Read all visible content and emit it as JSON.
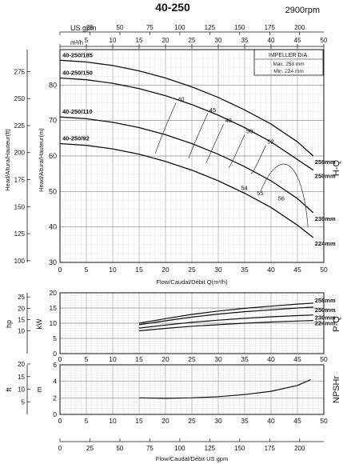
{
  "header": {
    "title": "40-250",
    "speed": "2900rpm"
  },
  "impeller_box": {
    "title": "IMPELLER DIA.",
    "max": "Max.  258  mm",
    "min": "Min.  224  mm"
  },
  "top_axes": {
    "gpm_label": "US gpm",
    "gpm_ticks": [
      "0",
      "25",
      "50",
      "75",
      "100",
      "125",
      "150",
      "175",
      "200"
    ],
    "m3h_label": "m³/h",
    "m3h_ticks": [
      "0",
      "5",
      "10",
      "15",
      "20",
      "25",
      "30",
      "35",
      "40",
      "45",
      "50"
    ]
  },
  "labels": {
    "head_m": "Head/Altura/Hauteur(m)",
    "head_ft": "Head/Altura/Hauteur(ft)",
    "hq": "H-Q",
    "pq": "P-Q",
    "npshr": "NPSHr",
    "flow_m3h": "Flow/Caudal/Débit Q(m³/h)",
    "flow_gpm": "Flow/Caudal/Débit  US gpm",
    "hp": "hp",
    "kw": "kW",
    "ft": "ft",
    "m": "m"
  },
  "chart_data": [
    {
      "type": "line",
      "name": "H-Q",
      "xlim": [
        0,
        50
      ],
      "ylim_m": [
        30,
        90
      ],
      "ylim_ft": [
        100,
        280
      ],
      "x_ticks": [
        0,
        5,
        10,
        15,
        20,
        25,
        30,
        35,
        40,
        45,
        50
      ],
      "y_ticks_m": [
        30,
        40,
        50,
        60,
        70,
        80
      ],
      "y_ticks_ft": [
        100,
        125,
        150,
        175,
        200,
        225,
        250,
        275
      ],
      "series": [
        {
          "name": "40-250/185",
          "end_label": "258mm",
          "x": [
            0,
            5,
            10,
            15,
            20,
            25,
            30,
            35,
            40,
            45,
            48
          ],
          "y": [
            87,
            86.5,
            85.5,
            84,
            82,
            79.5,
            76.5,
            73,
            69,
            64,
            60
          ]
        },
        {
          "name": "40-250/150",
          "end_label": "250mm",
          "x": [
            0,
            5,
            10,
            15,
            20,
            25,
            30,
            35,
            40,
            45,
            48
          ],
          "y": [
            82,
            81.5,
            80.5,
            79,
            77,
            74.5,
            71.5,
            68,
            64,
            59,
            56
          ]
        },
        {
          "name": "40-250/110",
          "end_label": "230mm",
          "x": [
            0,
            5,
            10,
            15,
            20,
            25,
            30,
            35,
            40,
            45,
            48
          ],
          "y": [
            71,
            70.5,
            69.5,
            68,
            66,
            63.5,
            60.5,
            57,
            53,
            48,
            44
          ]
        },
        {
          "name": "40-250/92",
          "end_label": "224mm",
          "x": [
            0,
            5,
            10,
            15,
            20,
            25,
            30,
            35,
            40,
            45,
            48
          ],
          "y": [
            63.5,
            63,
            62,
            60.5,
            58.5,
            56,
            53,
            49.5,
            45.5,
            40.5,
            37
          ]
        }
      ],
      "efficiency_labels": [
        "40",
        "45",
        "48",
        "50",
        "52",
        "54",
        "55",
        "56"
      ]
    },
    {
      "type": "line",
      "name": "P-Q",
      "xlim": [
        0,
        50
      ],
      "ylim_kw": [
        0,
        20
      ],
      "ylim_hp": [
        0,
        25
      ],
      "y_ticks_kw": [
        0,
        5,
        10,
        15,
        20
      ],
      "y_ticks_hp": [
        10,
        15,
        20,
        25
      ],
      "series": [
        {
          "name": "258mm",
          "x": [
            15,
            20,
            25,
            30,
            35,
            40,
            45,
            48
          ],
          "y": [
            10,
            11.5,
            12.9,
            14,
            14.9,
            15.6,
            16.3,
            16.6
          ]
        },
        {
          "name": "250mm",
          "x": [
            15,
            20,
            25,
            30,
            35,
            40,
            45,
            48
          ],
          "y": [
            9.5,
            10.8,
            12,
            13,
            13.8,
            14.4,
            15,
            15.3
          ]
        },
        {
          "name": "230mm",
          "x": [
            15,
            20,
            25,
            30,
            35,
            40,
            45,
            48
          ],
          "y": [
            8.4,
            9.4,
            10.3,
            11,
            11.6,
            12.1,
            12.5,
            12.7
          ]
        },
        {
          "name": "224mm",
          "x": [
            15,
            20,
            25,
            30,
            35,
            40,
            45,
            48
          ],
          "y": [
            7.5,
            8.3,
            9.0,
            9.5,
            10.0,
            10.4,
            10.7,
            10.9
          ]
        }
      ]
    },
    {
      "type": "line",
      "name": "NPSHr",
      "xlim": [
        0,
        50
      ],
      "ylim_m": [
        0,
        6
      ],
      "y_ticks_m": [
        0,
        2,
        4,
        6
      ],
      "y_ticks_ft": [
        5,
        10,
        15,
        20
      ],
      "series": [
        {
          "name": "NPSHr",
          "x": [
            15,
            20,
            25,
            30,
            35,
            40,
            45,
            47.5
          ],
          "y": [
            2.0,
            1.95,
            2.0,
            2.15,
            2.4,
            2.8,
            3.5,
            4.2
          ]
        }
      ]
    }
  ],
  "bottom_axis": {
    "gpm_ticks": [
      "0",
      "25",
      "50",
      "75",
      "100",
      "125",
      "150",
      "175",
      "200"
    ]
  }
}
